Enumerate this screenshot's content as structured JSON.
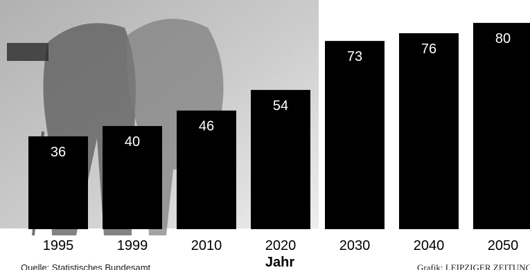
{
  "chart_data": {
    "type": "bar",
    "categories": [
      "1995",
      "1999",
      "2010",
      "2020",
      "2030",
      "2040",
      "2050"
    ],
    "values": [
      36,
      40,
      46,
      54,
      73,
      76,
      80
    ],
    "xlabel": "Jahr",
    "ylabel": "",
    "ylim": [
      0,
      85
    ],
    "grid": false,
    "bar_color": "#000000",
    "label_color": "#ffffff"
  },
  "source": "Quelle: Statistisches Bundesamt",
  "credit": "Grafik: LEIPZIGER ZEITUNG"
}
